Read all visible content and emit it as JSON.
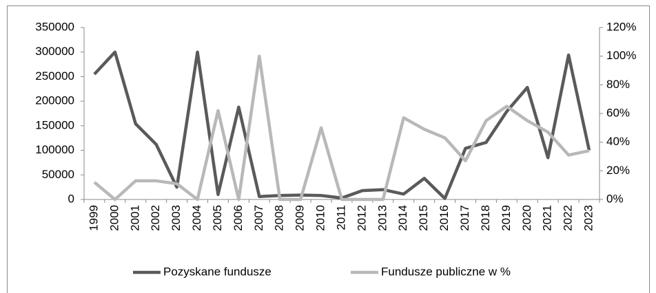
{
  "chart_data": {
    "type": "line",
    "categories": [
      "1999",
      "2000",
      "2001",
      "2002",
      "2003",
      "2004",
      "2005",
      "2006",
      "2007",
      "2008",
      "2009",
      "2010",
      "2011",
      "2012",
      "2013",
      "2014",
      "2015",
      "2016",
      "2017",
      "2018",
      "2019",
      "2020",
      "2021",
      "2022",
      "2023"
    ],
    "series": [
      {
        "name": "Pozyskane fundusze",
        "color": "#5a5a5a",
        "values": [
          255000,
          300000,
          154000,
          112000,
          25000,
          300000,
          10000,
          188000,
          6000,
          8000,
          9000,
          8000,
          3000,
          18000,
          20000,
          11000,
          43000,
          2000,
          104000,
          116000,
          179000,
          228000,
          85000,
          294000,
          100000
        ]
      },
      {
        "name": "Fundusze publiczne w %",
        "color": "#b8b8b8",
        "axis": "y2",
        "values": [
          12,
          0,
          13,
          13,
          11,
          0,
          62,
          0,
          100,
          0,
          0,
          50,
          0,
          0,
          0,
          57,
          49,
          43,
          27,
          55,
          65,
          55,
          47,
          31,
          34
        ]
      }
    ],
    "ylim": [
      0,
      350000
    ],
    "yticks": [
      0,
      50000,
      100000,
      150000,
      200000,
      250000,
      300000,
      350000
    ],
    "y2lim": [
      0,
      120
    ],
    "y2ticks": [
      {
        "value": 0,
        "label": "0%"
      },
      {
        "value": 20,
        "label": "20%"
      },
      {
        "value": 40,
        "label": "40%"
      },
      {
        "value": 60,
        "label": "60%"
      },
      {
        "value": 80,
        "label": "80%"
      },
      {
        "value": 100,
        "label": "100%"
      },
      {
        "value": 120,
        "label": "120%"
      }
    ],
    "grid": false,
    "legend": "bottom"
  }
}
